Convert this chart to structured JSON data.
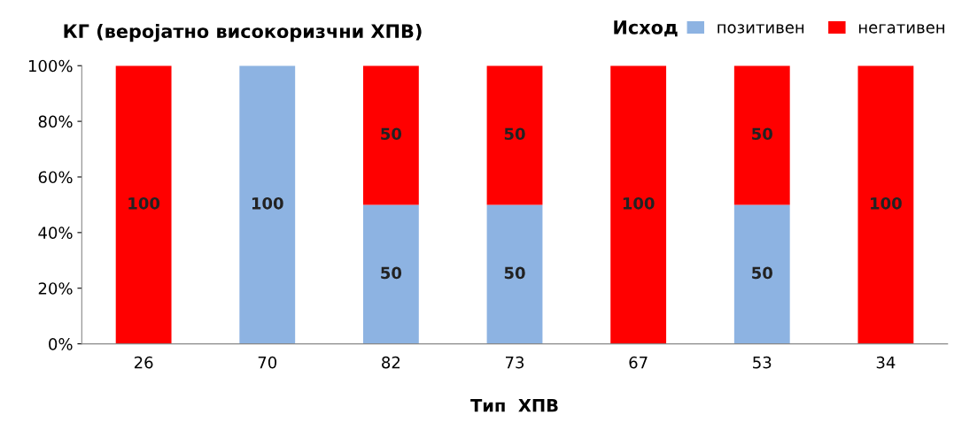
{
  "chart_data": {
    "type": "bar",
    "stacked": true,
    "title": "КГ (веројатно високоризчни ХПВ)",
    "xlabel": "Тип  ХПВ",
    "legend_title": "Исход",
    "legend": "top right",
    "categories": [
      "26",
      "70",
      "82",
      "73",
      "67",
      "53",
      "34"
    ],
    "series": [
      {
        "name": "позитивен",
        "color": "#8db3e2",
        "values": [
          0,
          100,
          50,
          50,
          0,
          50,
          0
        ],
        "value_labels": [
          null,
          "100",
          "50",
          "50",
          null,
          "50",
          null
        ]
      },
      {
        "name": "негативен",
        "color": "#ff0000",
        "values": [
          100,
          0,
          50,
          50,
          100,
          50,
          100
        ],
        "value_labels": [
          "100",
          null,
          "50",
          "50",
          "100",
          "50",
          "100"
        ]
      }
    ],
    "ylim": [
      0,
      100
    ],
    "yticks": [
      {
        "value": 0,
        "label": "0%"
      },
      {
        "value": 20,
        "label": "20%"
      },
      {
        "value": 40,
        "label": "40%"
      },
      {
        "value": 60,
        "label": "60%"
      },
      {
        "value": 80,
        "label": "80%"
      },
      {
        "value": 100,
        "label": "100%"
      }
    ]
  }
}
